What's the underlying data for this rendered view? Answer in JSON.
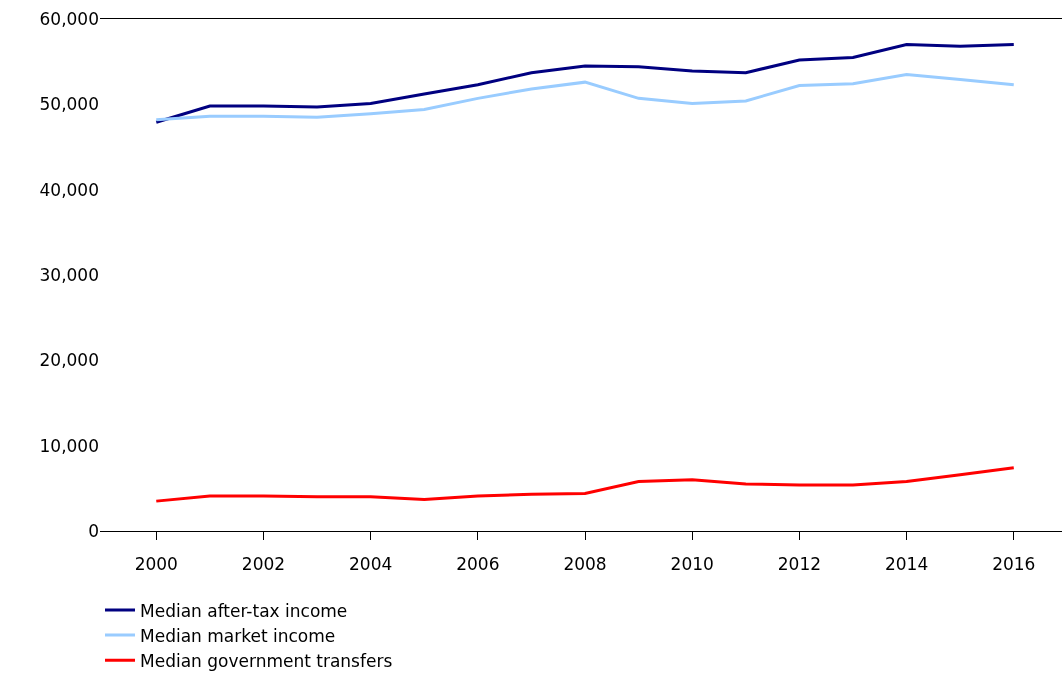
{
  "chart_data": {
    "type": "line",
    "x": [
      2000,
      2001,
      2002,
      2003,
      2004,
      2005,
      2006,
      2007,
      2008,
      2009,
      2010,
      2011,
      2012,
      2013,
      2014,
      2015,
      2016
    ],
    "series": [
      {
        "name": "Median after-tax income",
        "color": "#000080",
        "values": [
          47900,
          49800,
          49800,
          49700,
          50100,
          51200,
          52300,
          53700,
          54500,
          54400,
          53900,
          53700,
          55200,
          55500,
          57000,
          56800,
          57000
        ]
      },
      {
        "name": "Median market income",
        "color": "#99ccff",
        "values": [
          48200,
          48600,
          48600,
          48500,
          48900,
          49400,
          50700,
          51800,
          52600,
          50700,
          50100,
          50400,
          52200,
          52400,
          53500,
          52900,
          52300
        ]
      },
      {
        "name": "Median government transfers",
        "color": "#ff0000",
        "values": [
          3500,
          4100,
          4100,
          4000,
          4000,
          3700,
          4100,
          4300,
          4400,
          5800,
          6000,
          5500,
          5400,
          5400,
          5800,
          6600,
          7400
        ]
      }
    ],
    "xlim": [
      1998.95,
      2016.9
    ],
    "xticks": [
      2000,
      2002,
      2004,
      2006,
      2008,
      2010,
      2012,
      2014,
      2016
    ],
    "ylim": [
      0,
      60000
    ],
    "yticks": [
      {
        "value": 0,
        "label": "0"
      },
      {
        "value": 10000,
        "label": "10,000"
      },
      {
        "value": 20000,
        "label": "20,000"
      },
      {
        "value": 30000,
        "label": "30,000"
      },
      {
        "value": 40000,
        "label": "40,000"
      },
      {
        "value": 50000,
        "label": "50,000"
      },
      {
        "value": 60000,
        "label": "60,000"
      }
    ],
    "grid": false,
    "legend": "bottom",
    "marker": "none",
    "line_style": "solid"
  }
}
